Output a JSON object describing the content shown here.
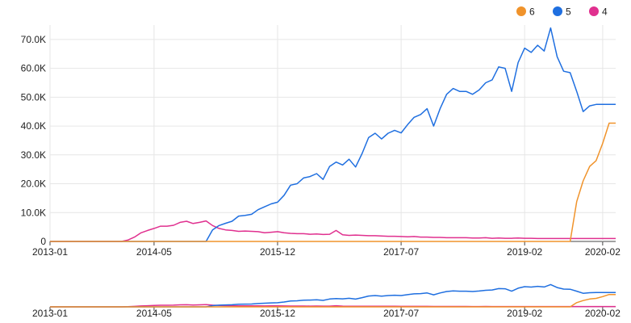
{
  "chart_data": {
    "type": "line",
    "title": "",
    "xlabel": "",
    "ylabel": "",
    "x_ticks": [
      "2013-01",
      "2014-05",
      "2015-12",
      "2017-07",
      "2019-02",
      "2020-02"
    ],
    "y_ticks": [
      "0",
      "10.0K",
      "20.0K",
      "30.0K",
      "40.0K",
      "50.0K",
      "60.0K",
      "70.0K"
    ],
    "ylim": [
      0,
      75000
    ],
    "xlim": [
      "2013-01",
      "2020-04"
    ],
    "grid": true,
    "legend_position": "top-right",
    "x": [
      "2013-01",
      "2013-02",
      "2013-03",
      "2013-04",
      "2013-05",
      "2013-06",
      "2013-07",
      "2013-08",
      "2013-09",
      "2013-10",
      "2013-11",
      "2013-12",
      "2014-01",
      "2014-02",
      "2014-03",
      "2014-04",
      "2014-05",
      "2014-06",
      "2014-07",
      "2014-08",
      "2014-09",
      "2014-10",
      "2014-11",
      "2014-12",
      "2015-01",
      "2015-02",
      "2015-03",
      "2015-04",
      "2015-05",
      "2015-06",
      "2015-07",
      "2015-08",
      "2015-09",
      "2015-10",
      "2015-11",
      "2015-12",
      "2016-01",
      "2016-02",
      "2016-03",
      "2016-04",
      "2016-05",
      "2016-06",
      "2016-07",
      "2016-08",
      "2016-09",
      "2016-10",
      "2016-11",
      "2016-12",
      "2017-01",
      "2017-02",
      "2017-03",
      "2017-04",
      "2017-05",
      "2017-06",
      "2017-07",
      "2017-08",
      "2017-09",
      "2017-10",
      "2017-11",
      "2017-12",
      "2018-01",
      "2018-02",
      "2018-03",
      "2018-04",
      "2018-05",
      "2018-06",
      "2018-07",
      "2018-08",
      "2018-09",
      "2018-10",
      "2018-11",
      "2018-12",
      "2019-01",
      "2019-02",
      "2019-03",
      "2019-04",
      "2019-05",
      "2019-06",
      "2019-07",
      "2019-08",
      "2019-09",
      "2019-10",
      "2019-11",
      "2019-12",
      "2020-01",
      "2020-02",
      "2020-03",
      "2020-04"
    ],
    "series": [
      {
        "name": "6",
        "color": "#f0932b",
        "values": [
          0,
          0,
          0,
          0,
          0,
          0,
          0,
          0,
          0,
          0,
          0,
          0,
          0,
          0,
          0,
          0,
          0,
          0,
          0,
          0,
          0,
          0,
          0,
          0,
          0,
          0,
          0,
          0,
          0,
          0,
          0,
          0,
          0,
          0,
          0,
          0,
          0,
          0,
          0,
          0,
          0,
          0,
          0,
          0,
          0,
          0,
          0,
          0,
          0,
          0,
          0,
          0,
          0,
          0,
          0,
          0,
          0,
          0,
          0,
          0,
          0,
          0,
          0,
          0,
          0,
          0,
          0,
          0,
          0,
          0,
          0,
          0,
          0,
          0,
          0,
          0,
          0,
          0,
          0,
          0,
          0,
          13800,
          21000,
          26000,
          28000,
          34000,
          41000,
          41000
        ]
      },
      {
        "name": "5",
        "color": "#1f6fe0",
        "values": [
          0,
          0,
          0,
          0,
          0,
          0,
          0,
          0,
          0,
          0,
          0,
          0,
          0,
          0,
          0,
          0,
          0,
          0,
          0,
          0,
          0,
          0,
          0,
          0,
          0,
          4000,
          5500,
          6300,
          7000,
          8800,
          9000,
          9400,
          11000,
          12000,
          13000,
          13600,
          16000,
          19500,
          20000,
          22000,
          22500,
          23500,
          21500,
          26000,
          27500,
          26500,
          28500,
          25800,
          30500,
          36000,
          37500,
          35500,
          37500,
          38500,
          37600,
          40500,
          43000,
          44000,
          46000,
          40000,
          46000,
          51000,
          53000,
          52000,
          52000,
          51000,
          52500,
          55000,
          56000,
          60500,
          60000,
          52000,
          62000,
          67000,
          65500,
          68000,
          66000,
          74000,
          64000,
          59000,
          58500,
          52000,
          45000,
          47000,
          47500,
          47500,
          47500,
          47500
        ]
      },
      {
        "name": "4",
        "color": "#e0308f",
        "values": [
          0,
          0,
          0,
          0,
          0,
          0,
          0,
          0,
          0,
          0,
          0,
          0,
          500,
          1500,
          3000,
          3800,
          4500,
          5300,
          5300,
          5600,
          6600,
          7000,
          6200,
          6600,
          7100,
          5500,
          4500,
          4000,
          3800,
          3500,
          3600,
          3500,
          3400,
          3000,
          3200,
          3400,
          3000,
          2800,
          2700,
          2700,
          2500,
          2600,
          2400,
          2500,
          3800,
          2300,
          2100,
          2200,
          2100,
          2000,
          2000,
          1900,
          1800,
          1800,
          1700,
          1600,
          1700,
          1500,
          1500,
          1400,
          1400,
          1300,
          1300,
          1300,
          1300,
          1200,
          1200,
          1300,
          1100,
          1200,
          1100,
          1100,
          1200,
          1100,
          1100,
          1000,
          1000,
          1000,
          1000,
          1000,
          1000,
          1000,
          1000,
          1000,
          1000,
          1000,
          1000,
          1000
        ]
      }
    ]
  }
}
